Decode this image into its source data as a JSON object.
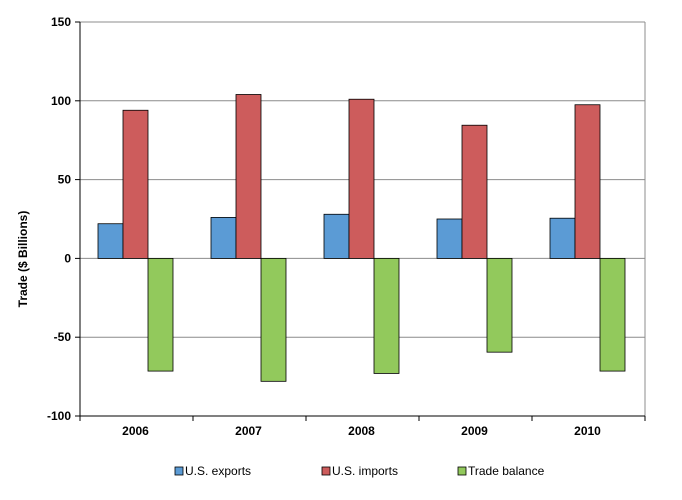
{
  "chart_data": {
    "type": "bar",
    "title": "",
    "xlabel": "",
    "ylabel": "Trade ($ Billions)",
    "ylim": [
      -100,
      150
    ],
    "yticks": [
      -100,
      -50,
      0,
      50,
      100,
      150
    ],
    "categories": [
      "2006",
      "2007",
      "2008",
      "2009",
      "2010"
    ],
    "series": [
      {
        "name": "U.S. exports",
        "color": "#5B9BD5",
        "values": [
          22,
          26,
          28,
          25,
          25.5
        ]
      },
      {
        "name": "U.S. imports",
        "color": "#CD5C5C",
        "values": [
          94,
          104,
          101,
          84.5,
          97.5
        ]
      },
      {
        "name": "Trade balance",
        "color": "#92C95C",
        "values": [
          -71.5,
          -78,
          -73,
          -59.5,
          -71.5
        ]
      }
    ],
    "grid": true,
    "legend": "bottom"
  }
}
